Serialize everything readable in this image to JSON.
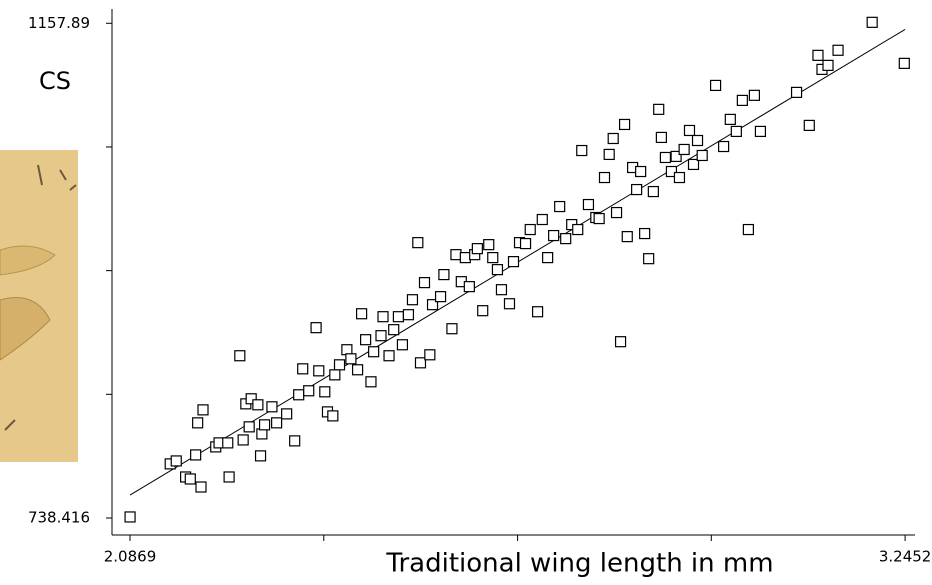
{
  "chart_data": {
    "type": "scatter",
    "y_label": "CS",
    "x_label": "Traditional wing length in mm",
    "xlim": [
      2.06,
      3.26
    ],
    "ylim": [
      724,
      1170
    ],
    "xticks": [
      2.0869,
      {
        "value": 2.3765,
        "label": null
      },
      {
        "value": 2.6661,
        "label": null
      },
      {
        "value": 2.9556,
        "label": null
      },
      3.2452
    ],
    "yticks": [
      738.416,
      {
        "value": 843.285,
        "label": null
      },
      {
        "value": 948.153,
        "label": null
      },
      {
        "value": 1053.02,
        "label": null
      },
      1157.89
    ],
    "color": "#000000",
    "fit_line": {
      "x": [
        2.0869,
        3.2452
      ],
      "y": [
        757.9,
        1152.7
      ]
    },
    "x": [
      2.087,
      2.147,
      2.156,
      2.17,
      2.177,
      2.193,
      2.185,
      2.188,
      2.196,
      2.215,
      2.22,
      2.233,
      2.235,
      2.251,
      2.256,
      2.26,
      2.265,
      2.268,
      2.278,
      2.282,
      2.284,
      2.288,
      2.299,
      2.306,
      2.321,
      2.333,
      2.339,
      2.345,
      2.354,
      2.365,
      2.369,
      2.378,
      2.382,
      2.39,
      2.393,
      2.4,
      2.411,
      2.417,
      2.427,
      2.433,
      2.439,
      2.447,
      2.451,
      2.462,
      2.465,
      2.474,
      2.481,
      2.488,
      2.494,
      2.503,
      2.509,
      2.517,
      2.521,
      2.527,
      2.535,
      2.539,
      2.551,
      2.556,
      2.568,
      2.574,
      2.582,
      2.588,
      2.594,
      2.602,
      2.606,
      2.614,
      2.623,
      2.629,
      2.636,
      2.642,
      2.654,
      2.66,
      2.669,
      2.678,
      2.685,
      2.696,
      2.703,
      2.711,
      2.72,
      2.729,
      2.738,
      2.747,
      2.756,
      2.762,
      2.772,
      2.783,
      2.788,
      2.796,
      2.803,
      2.809,
      2.814,
      2.82,
      2.826,
      2.83,
      2.838,
      2.844,
      2.85,
      2.856,
      2.862,
      2.869,
      2.877,
      2.881,
      2.887,
      2.896,
      2.903,
      2.908,
      2.915,
      2.923,
      2.929,
      2.935,
      2.942,
      2.962,
      2.974,
      2.984,
      2.993,
      3.002,
      3.011,
      3.02,
      3.029,
      3.083,
      3.102,
      3.115,
      3.121,
      3.13,
      3.145,
      3.196,
      3.244
    ],
    "y": [
      739.3,
      784.3,
      786.8,
      773.2,
      771.5,
      764.7,
      791.9,
      819.1,
      830.1,
      798.7,
      802.1,
      802.1,
      773.2,
      876.0,
      804.6,
      835.2,
      815.7,
      839.5,
      834.4,
      791.1,
      809.7,
      817.4,
      832.7,
      819.1,
      826.7,
      803.8,
      842.9,
      864.9,
      846.3,
      899.8,
      863.2,
      845.4,
      828.4,
      825.0,
      859.8,
      868.3,
      881.1,
      873.4,
      864.1,
      911.6,
      889.6,
      853.9,
      879.4,
      893.0,
      909.1,
      876.0,
      898.1,
      909.1,
      885.3,
      910.8,
      923.5,
      971.9,
      870.0,
      938.0,
      876.8,
      919.3,
      926.1,
      944.8,
      898.9,
      961.7,
      938.8,
      959.2,
      934.6,
      961.7,
      966.8,
      914.2,
      970.2,
      959.2,
      949.0,
      932.0,
      920.1,
      955.8,
      971.9,
      971.1,
      983.0,
      913.3,
      991.5,
      959.2,
      977.9,
      1002.5,
      975.3,
      987.2,
      983.0,
      1050.0,
      1004.2,
      993.2,
      992.3,
      1027.1,
      1046.7,
      1060.2,
      997.4,
      887.9,
      1072.1,
      977.0,
      1035.6,
      1016.9,
      1032.2,
      979.6,
      958.3,
      1015.2,
      1084.9,
      1061.1,
      1044.1,
      1032.2,
      1045.0,
      1027.1,
      1050.9,
      1067.0,
      1038.2,
      1058.5,
      1045.8,
      1105.2,
      1053.4,
      1076.4,
      1066.2,
      1092.5,
      983.0,
      1096.8,
      1066.2,
      1099.3,
      1071.3,
      1130.7,
      1118.8,
      1122.2,
      1135.0,
      1158.7,
      1123.9
    ]
  }
}
